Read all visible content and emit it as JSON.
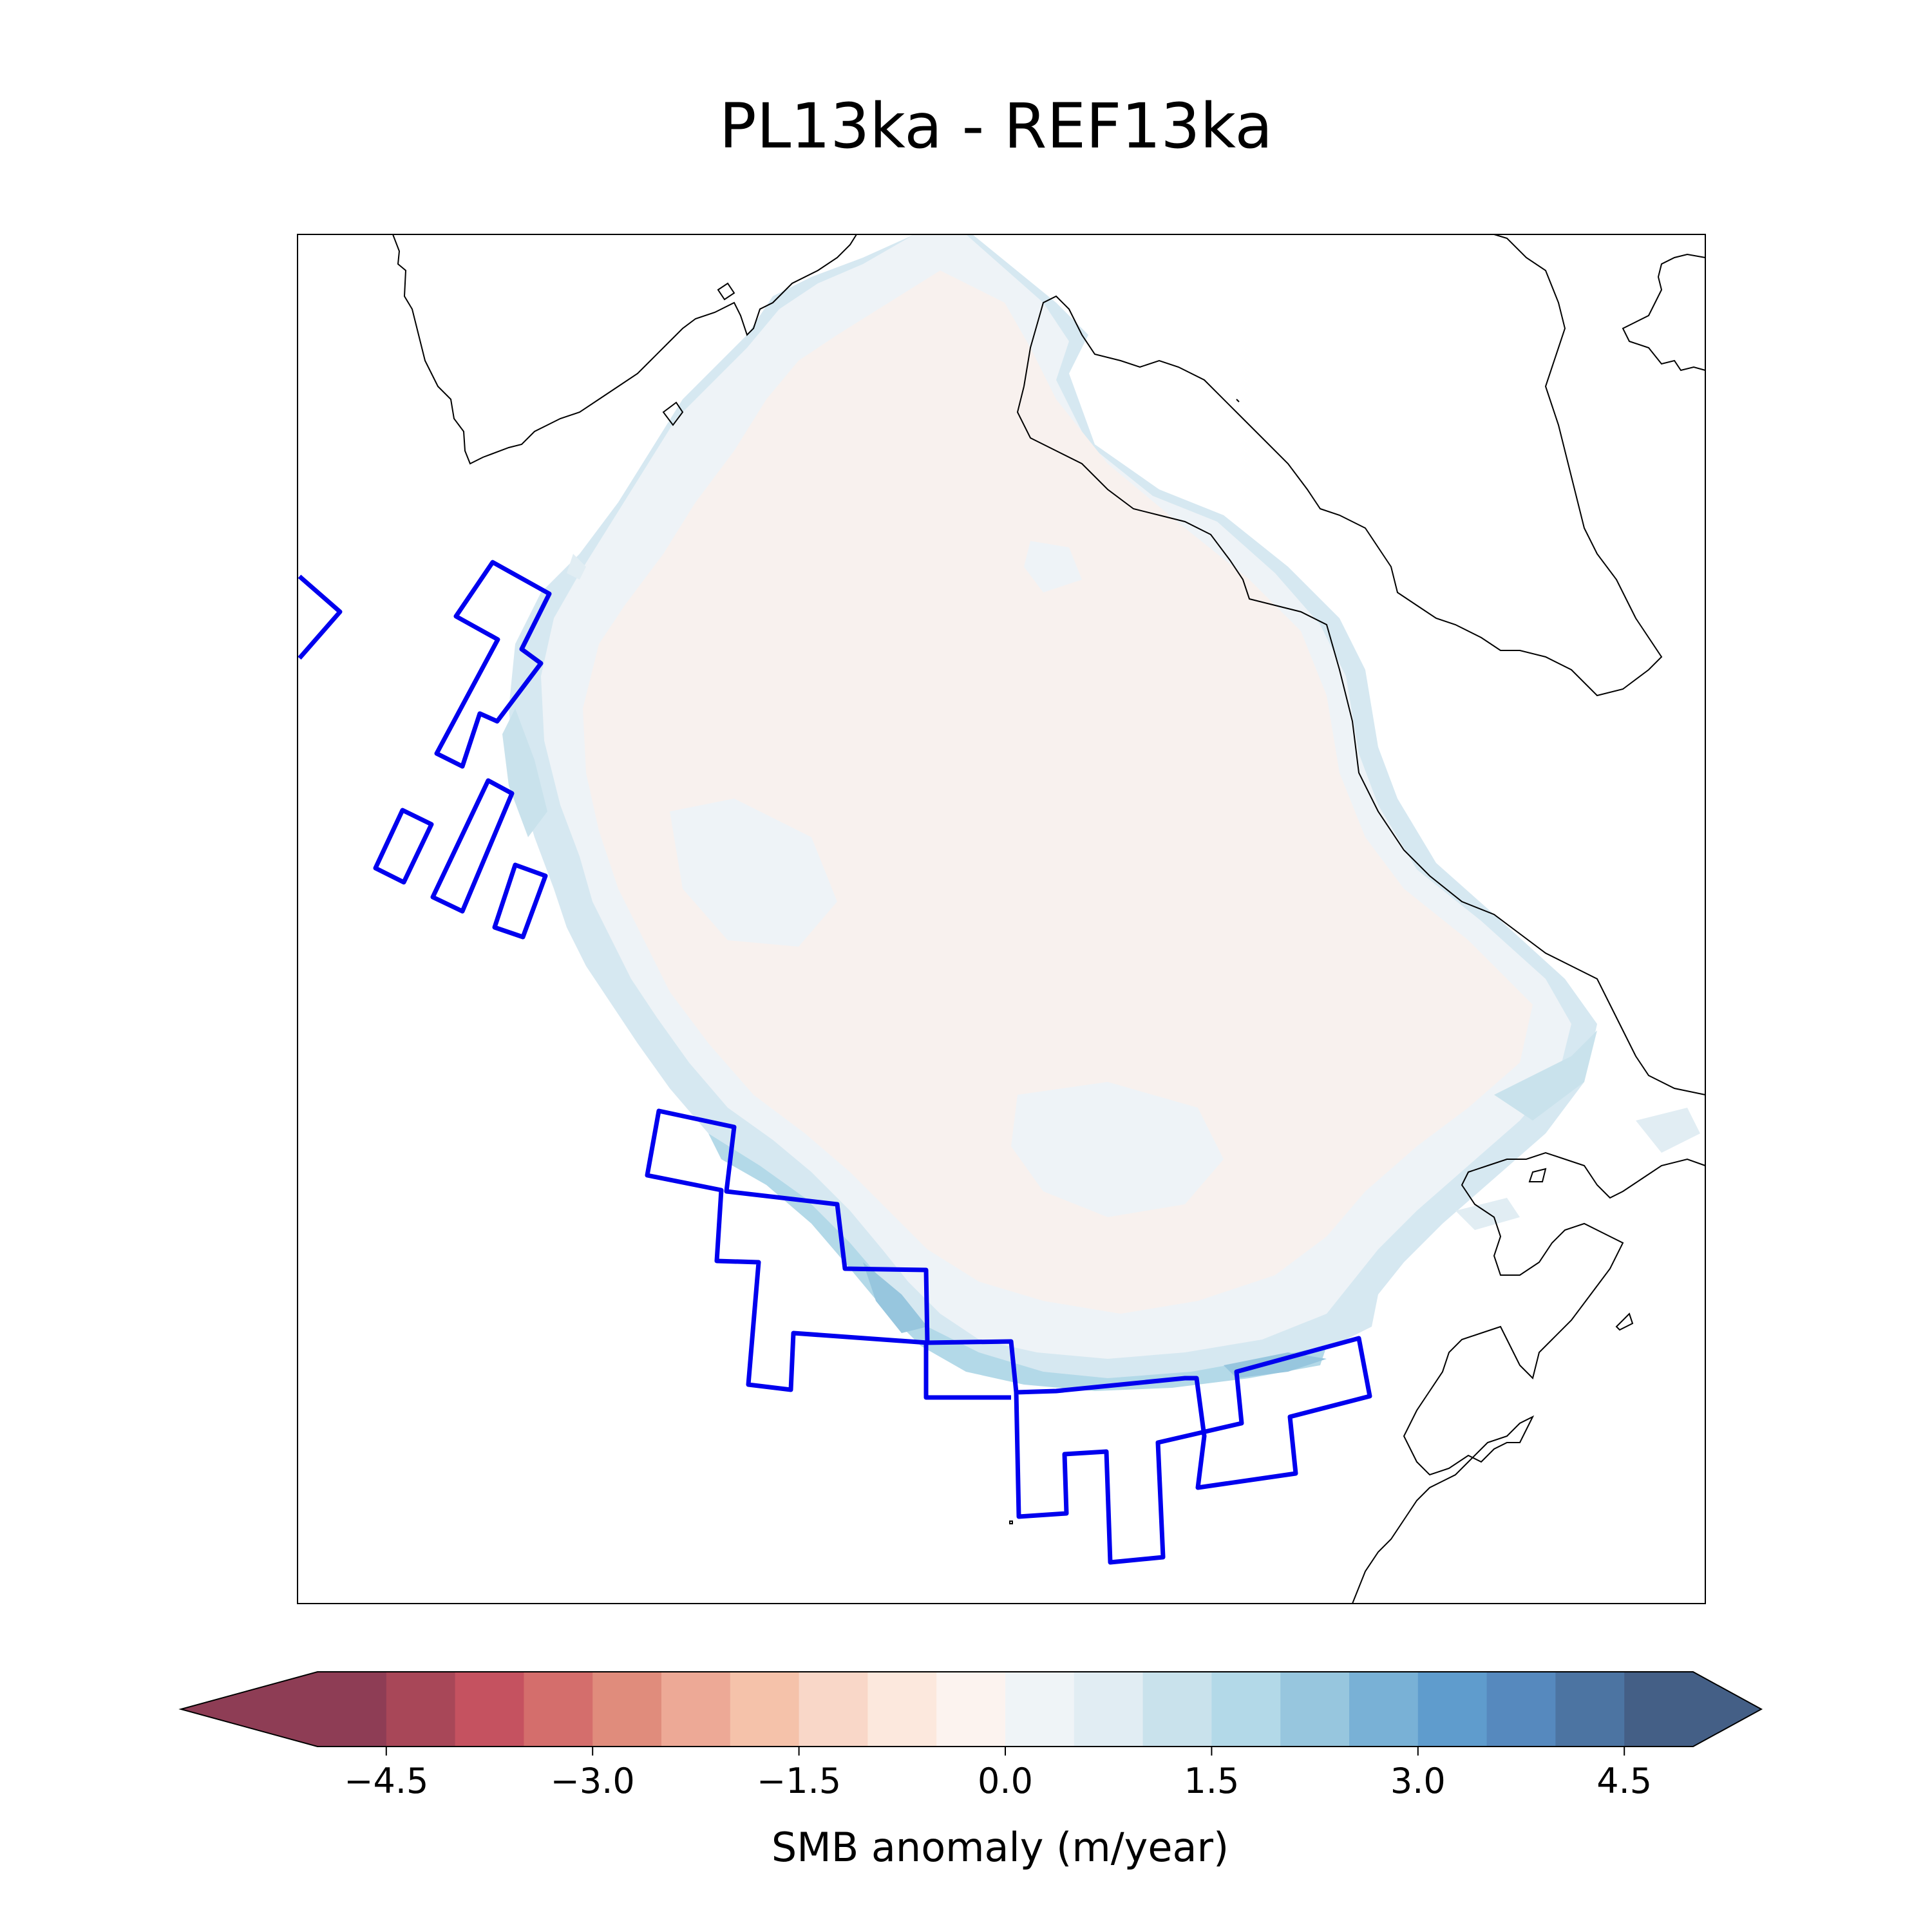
{
  "title": "PL13ka - REF13ka",
  "colorbar": {
    "label": "SMB anomaly (m/year)",
    "ticks": [
      "−4.5",
      "−3.0",
      "−1.5",
      "0.0",
      "1.5",
      "3.0",
      "4.5"
    ],
    "tick_values": [
      -4.5,
      -3.0,
      -1.5,
      0.0,
      1.5,
      3.0,
      4.5
    ],
    "range": [
      -5.0,
      5.0
    ],
    "extend": "both",
    "colormap": "RdBu",
    "level_colors": [
      "#8e3d55",
      "#a84758",
      "#c55260",
      "#d46e6c",
      "#e08c7c",
      "#eda996",
      "#f5c2aa",
      "#f9d7c8",
      "#fce8dd",
      "#fcf3ef",
      "#eff4f7",
      "#e1edf3",
      "#c9e2ec",
      "#b3d9e8",
      "#97c6de",
      "#79b1d6",
      "#5f9ccd",
      "#5689be",
      "#4c74a2",
      "#445f86"
    ]
  },
  "map": {
    "ice_fill": "#f8f1ee",
    "ice_edge": "#eef3f7",
    "ice_margin": "#d6e8f1",
    "coast_color": "#000000",
    "region_outline_color": "#0000ee"
  }
}
